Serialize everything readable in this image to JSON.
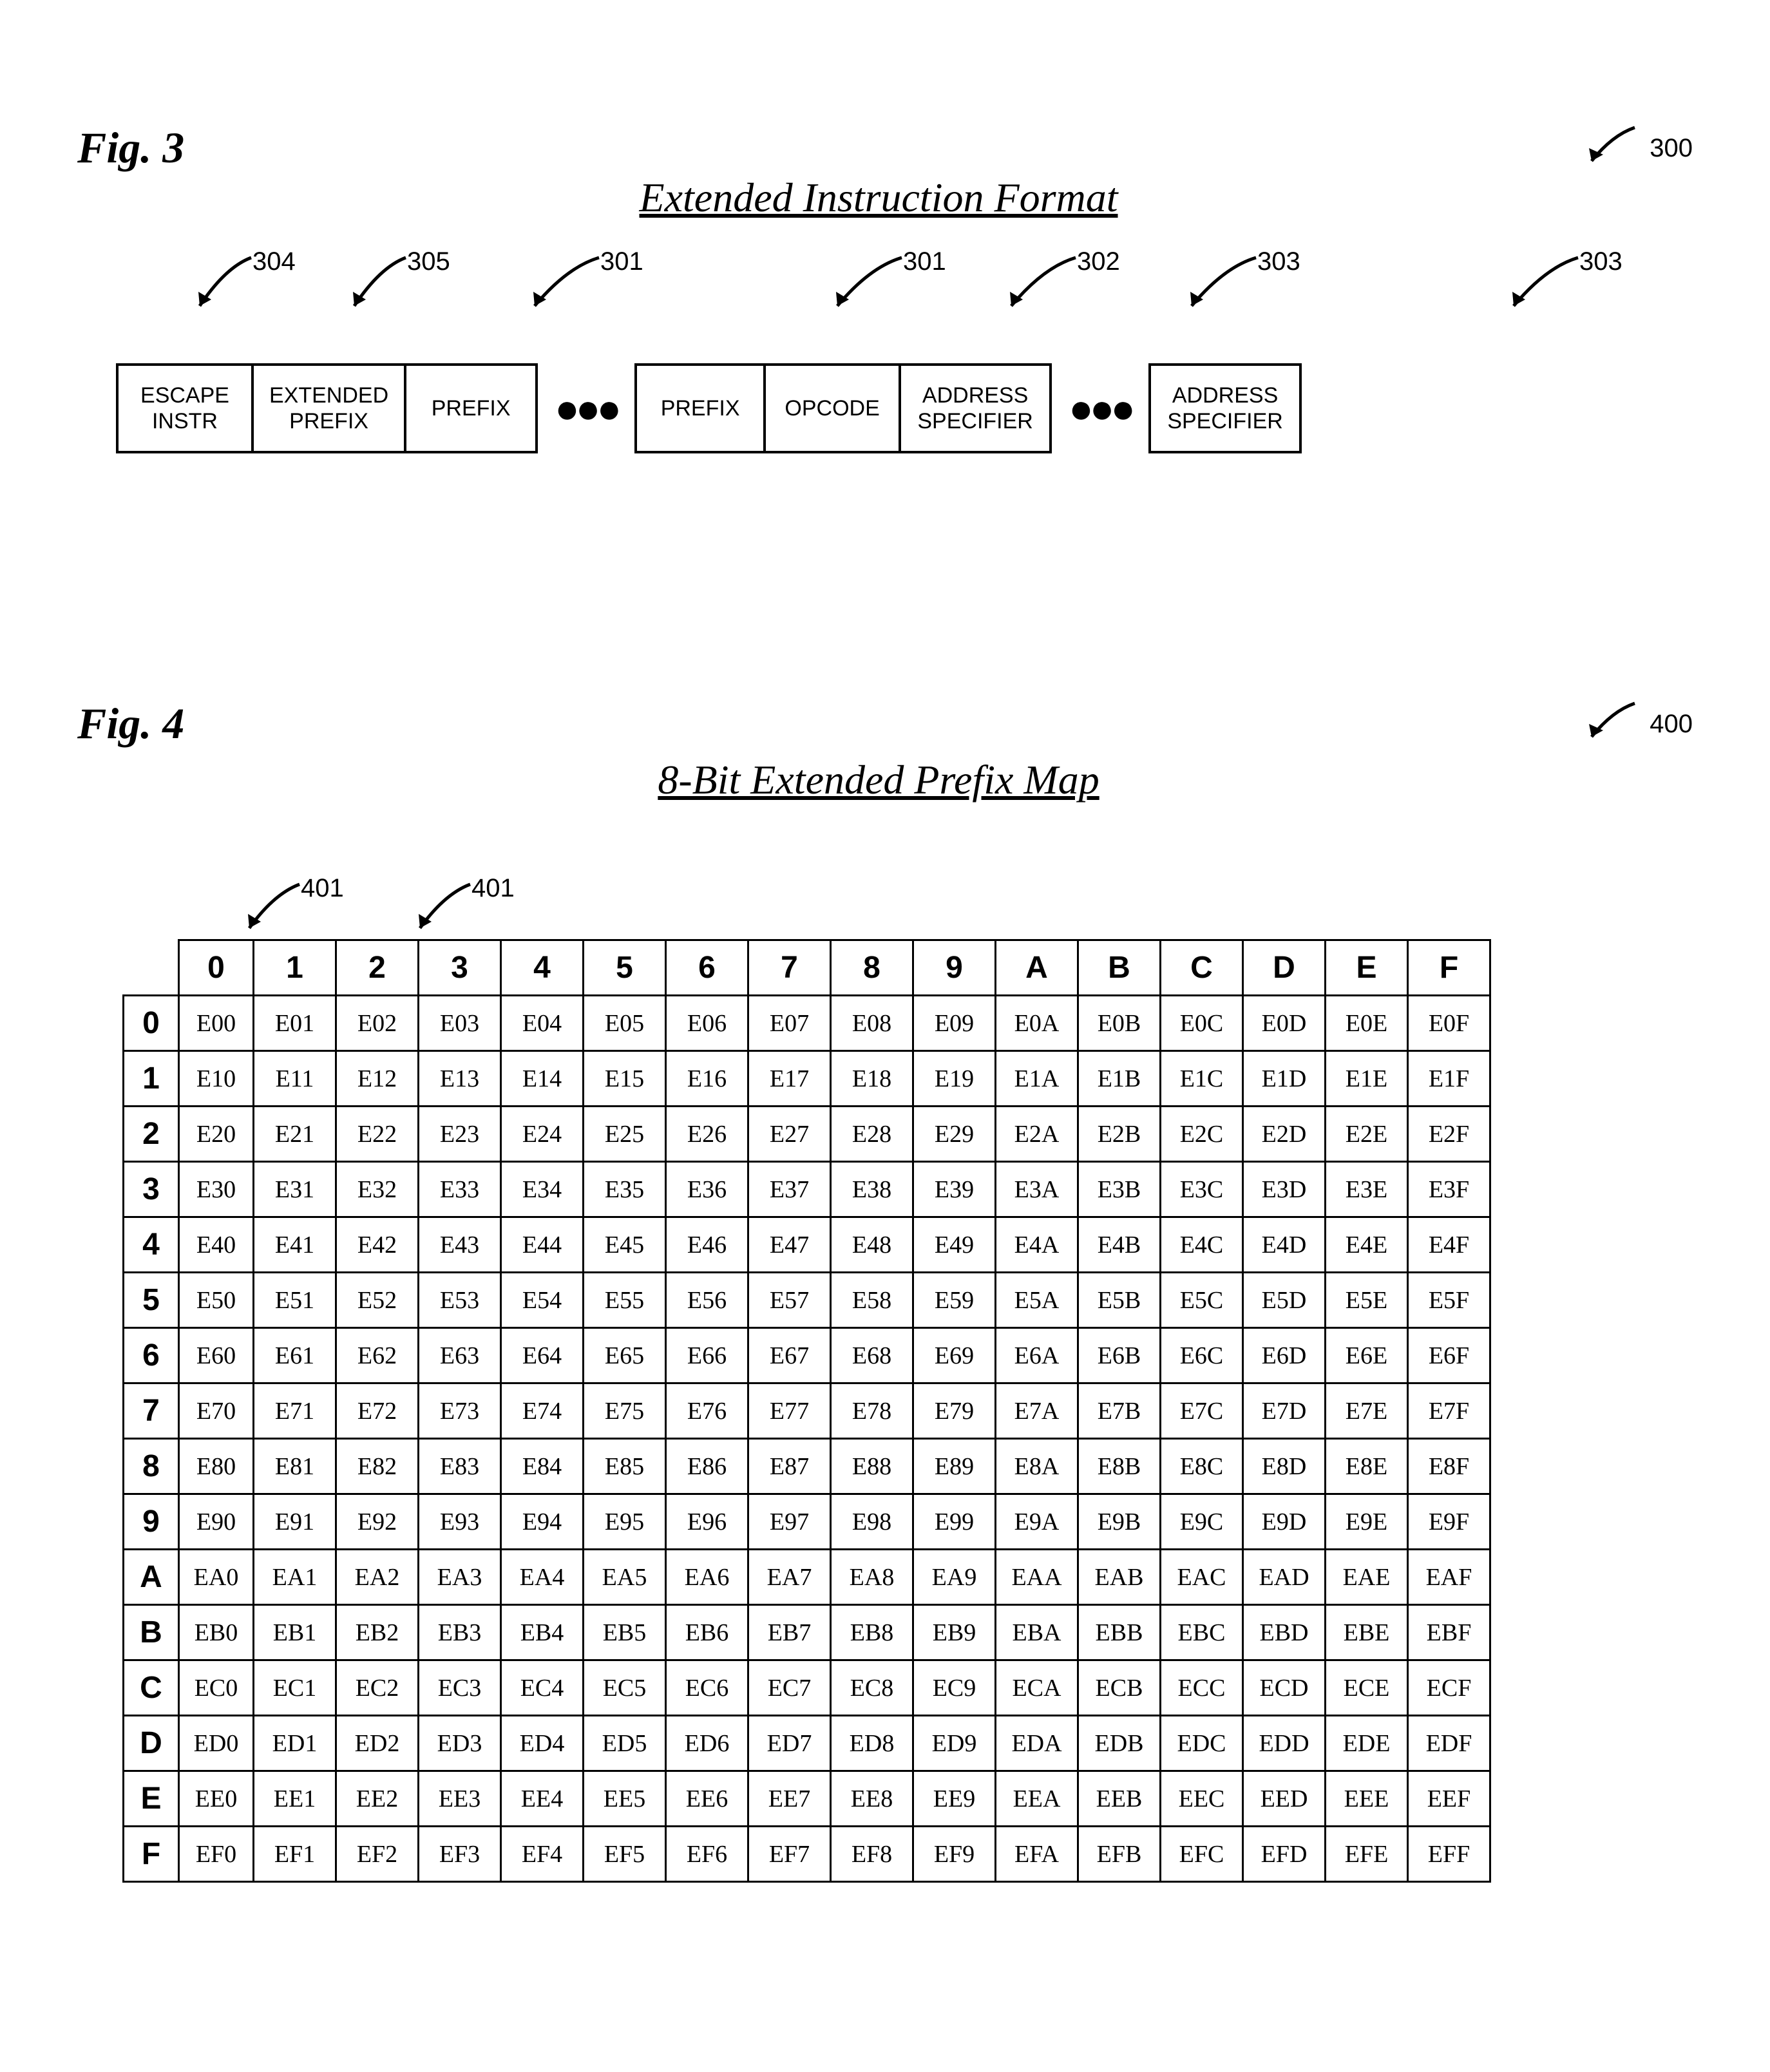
{
  "fig3": {
    "label": "Fig. 3",
    "title": "Extended Instruction Format",
    "ref_num": "300",
    "boxes_left": [
      {
        "text": "ESCAPE\nINSTR",
        "num": "304"
      },
      {
        "text": "EXTENDED\nPREFIX",
        "num": "305"
      },
      {
        "text": "PREFIX",
        "num": "301"
      }
    ],
    "boxes_mid": [
      {
        "text": "PREFIX",
        "num": "301"
      },
      {
        "text": "OPCODE",
        "num": "302"
      },
      {
        "text": "ADDRESS\nSPECIFIER",
        "num": "303"
      }
    ],
    "box_right": {
      "text": "ADDRESS\nSPECIFIER",
      "num": "303"
    }
  },
  "fig4": {
    "label": "Fig. 4",
    "title": "8-Bit Extended Prefix Map",
    "ref_num": "400",
    "callout_num": "401",
    "col_headers": [
      "0",
      "1",
      "2",
      "3",
      "4",
      "5",
      "6",
      "7",
      "8",
      "9",
      "A",
      "B",
      "C",
      "D",
      "E",
      "F"
    ],
    "row_headers": [
      "0",
      "1",
      "2",
      "3",
      "4",
      "5",
      "6",
      "7",
      "8",
      "9",
      "A",
      "B",
      "C",
      "D",
      "E",
      "F"
    ],
    "rows": [
      [
        "E00",
        "E01",
        "E02",
        "E03",
        "E04",
        "E05",
        "E06",
        "E07",
        "E08",
        "E09",
        "E0A",
        "E0B",
        "E0C",
        "E0D",
        "E0E",
        "E0F"
      ],
      [
        "E10",
        "E11",
        "E12",
        "E13",
        "E14",
        "E15",
        "E16",
        "E17",
        "E18",
        "E19",
        "E1A",
        "E1B",
        "E1C",
        "E1D",
        "E1E",
        "E1F"
      ],
      [
        "E20",
        "E21",
        "E22",
        "E23",
        "E24",
        "E25",
        "E26",
        "E27",
        "E28",
        "E29",
        "E2A",
        "E2B",
        "E2C",
        "E2D",
        "E2E",
        "E2F"
      ],
      [
        "E30",
        "E31",
        "E32",
        "E33",
        "E34",
        "E35",
        "E36",
        "E37",
        "E38",
        "E39",
        "E3A",
        "E3B",
        "E3C",
        "E3D",
        "E3E",
        "E3F"
      ],
      [
        "E40",
        "E41",
        "E42",
        "E43",
        "E44",
        "E45",
        "E46",
        "E47",
        "E48",
        "E49",
        "E4A",
        "E4B",
        "E4C",
        "E4D",
        "E4E",
        "E4F"
      ],
      [
        "E50",
        "E51",
        "E52",
        "E53",
        "E54",
        "E55",
        "E56",
        "E57",
        "E58",
        "E59",
        "E5A",
        "E5B",
        "E5C",
        "E5D",
        "E5E",
        "E5F"
      ],
      [
        "E60",
        "E61",
        "E62",
        "E63",
        "E64",
        "E65",
        "E66",
        "E67",
        "E68",
        "E69",
        "E6A",
        "E6B",
        "E6C",
        "E6D",
        "E6E",
        "E6F"
      ],
      [
        "E70",
        "E71",
        "E72",
        "E73",
        "E74",
        "E75",
        "E76",
        "E77",
        "E78",
        "E79",
        "E7A",
        "E7B",
        "E7C",
        "E7D",
        "E7E",
        "E7F"
      ],
      [
        "E80",
        "E81",
        "E82",
        "E83",
        "E84",
        "E85",
        "E86",
        "E87",
        "E88",
        "E89",
        "E8A",
        "E8B",
        "E8C",
        "E8D",
        "E8E",
        "E8F"
      ],
      [
        "E90",
        "E91",
        "E92",
        "E93",
        "E94",
        "E95",
        "E96",
        "E97",
        "E98",
        "E99",
        "E9A",
        "E9B",
        "E9C",
        "E9D",
        "E9E",
        "E9F"
      ],
      [
        "EA0",
        "EA1",
        "EA2",
        "EA3",
        "EA4",
        "EA5",
        "EA6",
        "EA7",
        "EA8",
        "EA9",
        "EAA",
        "EAB",
        "EAC",
        "EAD",
        "EAE",
        "EAF"
      ],
      [
        "EB0",
        "EB1",
        "EB2",
        "EB3",
        "EB4",
        "EB5",
        "EB6",
        "EB7",
        "EB8",
        "EB9",
        "EBA",
        "EBB",
        "EBC",
        "EBD",
        "EBE",
        "EBF"
      ],
      [
        "EC0",
        "EC1",
        "EC2",
        "EC3",
        "EC4",
        "EC5",
        "EC6",
        "EC7",
        "EC8",
        "EC9",
        "ECA",
        "ECB",
        "ECC",
        "ECD",
        "ECE",
        "ECF"
      ],
      [
        "ED0",
        "ED1",
        "ED2",
        "ED3",
        "ED4",
        "ED5",
        "ED6",
        "ED7",
        "ED8",
        "ED9",
        "EDA",
        "EDB",
        "EDC",
        "EDD",
        "EDE",
        "EDF"
      ],
      [
        "EE0",
        "EE1",
        "EE2",
        "EE3",
        "EE4",
        "EE5",
        "EE6",
        "EE7",
        "EE8",
        "EE9",
        "EEA",
        "EEB",
        "EEC",
        "EED",
        "EEE",
        "EEF"
      ],
      [
        "EF0",
        "EF1",
        "EF2",
        "EF3",
        "EF4",
        "EF5",
        "EF6",
        "EF7",
        "EF8",
        "EF9",
        "EFA",
        "EFB",
        "EFC",
        "EFD",
        "EFE",
        "EFF"
      ]
    ]
  },
  "style": {
    "border_color": "#000000",
    "bg_color": "#ffffff",
    "cell_font": "Times New Roman",
    "header_font": "Arial",
    "box_font": "Arial"
  }
}
